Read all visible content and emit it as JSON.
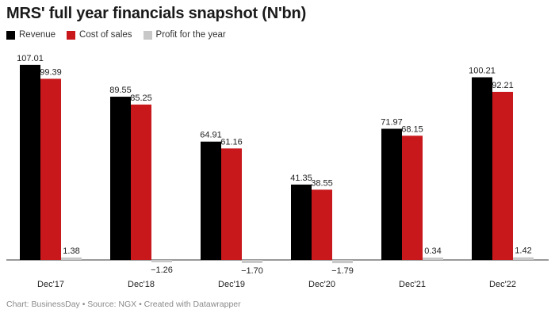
{
  "chart_data": {
    "type": "bar",
    "title": "MRS' full year financials snapshot (N'bn)",
    "categories": [
      "Dec'17",
      "Dec'18",
      "Dec'19",
      "Dec'20",
      "Dec'21",
      "Dec'22"
    ],
    "series": [
      {
        "name": "Revenue",
        "color": "#000000",
        "values": [
          107.01,
          89.55,
          64.91,
          41.35,
          71.97,
          100.21
        ],
        "labels": [
          "107.01",
          "89.55",
          "64.91",
          "41.35",
          "71.97",
          "100.21"
        ]
      },
      {
        "name": "Cost of sales",
        "color": "#c8181c",
        "values": [
          99.39,
          85.25,
          61.16,
          38.55,
          68.15,
          92.21
        ],
        "labels": [
          "99.39",
          "85.25",
          "61.16",
          "38.55",
          "68.15",
          "92.21"
        ]
      },
      {
        "name": "Profit for the year",
        "color": "#c8c8c8",
        "values": [
          1.38,
          -1.26,
          -1.7,
          -1.79,
          0.34,
          1.42
        ],
        "labels": [
          "1.38",
          "−1.26",
          "−1.70",
          "−1.79",
          "0.34",
          "1.42"
        ]
      }
    ],
    "xlabel": "",
    "ylabel": "",
    "ylim": [
      -2,
      107.01
    ],
    "grid": false,
    "legend": "top-left"
  },
  "footer": "Chart: BusinessDay • Source: NGX • Created with Datawrapper"
}
